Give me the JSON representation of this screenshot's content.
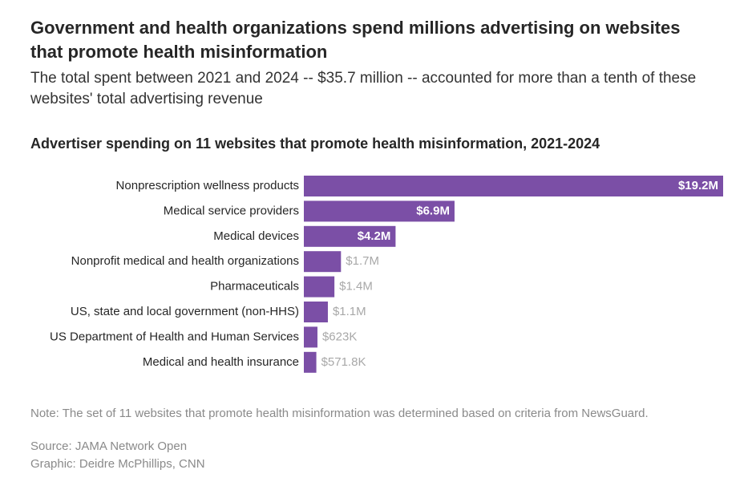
{
  "header": {
    "title": "Government and health organizations spend millions advertising on websites that promote health misinformation",
    "subtitle": "The total spent between 2021 and 2024 -- $35.7 million -- accounted for more than a tenth of these websites' total advertising revenue"
  },
  "chart_data": {
    "type": "bar",
    "orientation": "horizontal",
    "title": "Advertiser spending on 11 websites that promote health misinformation, 2021-2024",
    "categories": [
      "Nonprescription wellness products",
      "Medical service providers",
      "Medical devices",
      "Nonprofit medical and health organizations",
      "Pharmaceuticals",
      "US, state and local government (non-HHS)",
      "US Department of Health and Human Services",
      "Medical and health insurance"
    ],
    "values": [
      19200000,
      6900000,
      4200000,
      1700000,
      1400000,
      1100000,
      623000,
      571800
    ],
    "value_labels": [
      "$19.2M",
      "$6.9M",
      "$4.2M",
      "$1.7M",
      "$1.4M",
      "$1.1M",
      "$623K",
      "$571.8K"
    ],
    "color": "#7b4fa6"
  },
  "footer": {
    "note": "Note: The set of 11 websites that promote health misinformation was determined based on criteria from NewsGuard.",
    "source": "Source: JAMA Network Open",
    "credit": "Graphic: Deidre McPhillips, CNN"
  }
}
